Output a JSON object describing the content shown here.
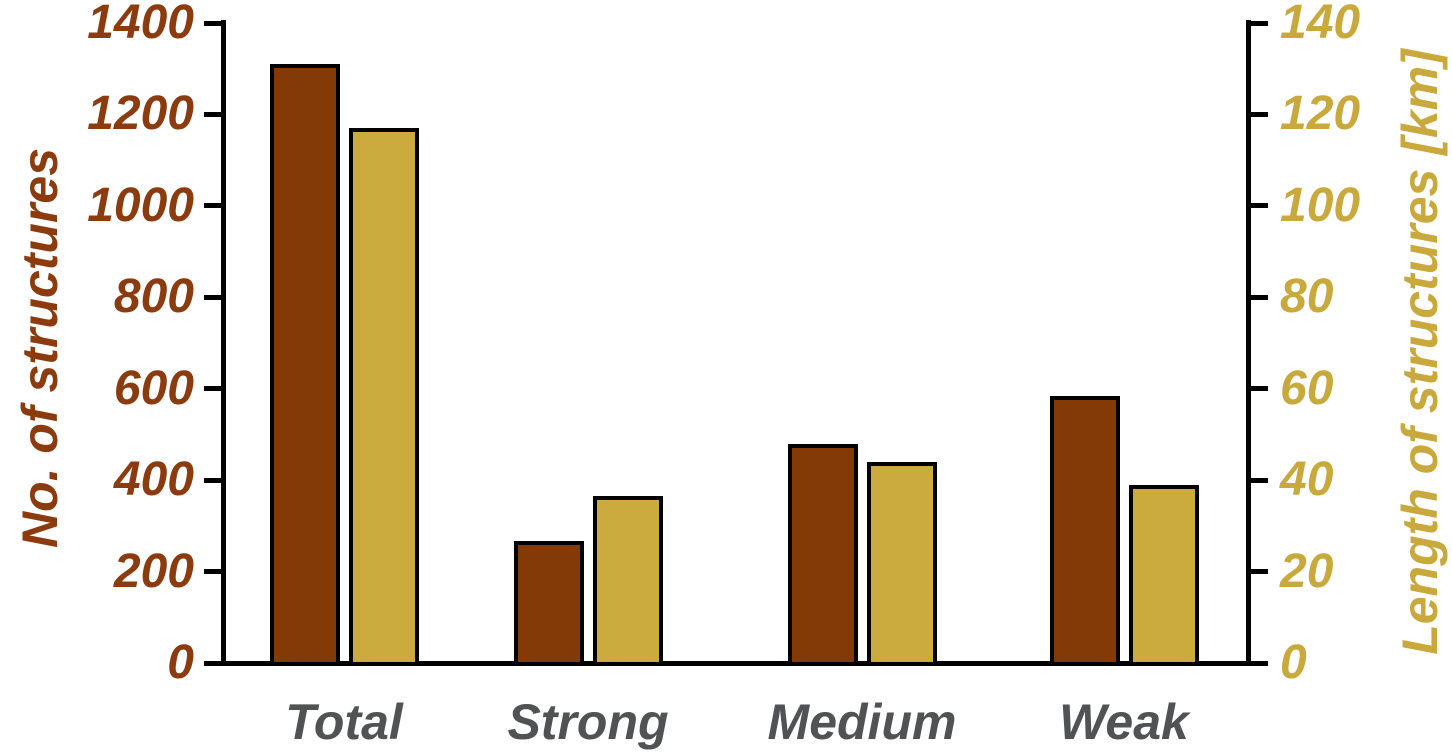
{
  "chart_data": {
    "type": "bar",
    "categories": [
      "Total",
      "Strong",
      "Medium",
      "Weak"
    ],
    "series": [
      {
        "name": "No. of structures",
        "axis": "left",
        "color": "#843A06",
        "border_color": "#000000",
        "values": [
          1310,
          267,
          480,
          585
        ]
      },
      {
        "name": "Length of structures [km]",
        "axis": "right",
        "color": "#CBAA3E",
        "border_color": "#000000",
        "values": [
          117,
          36.5,
          44,
          39
        ]
      }
    ],
    "left_axis": {
      "label": "No. of structures",
      "min": 0,
      "max": 1400,
      "tick_step": 200,
      "tick_labels": [
        "0",
        "200",
        "400",
        "600",
        "800",
        "1000",
        "1200",
        "1400"
      ],
      "text_color": "#8B3B0E"
    },
    "right_axis": {
      "label": "Length of structures [km]",
      "min": 0,
      "max": 140,
      "tick_step": 20,
      "tick_labels": [
        "0",
        "20",
        "40",
        "60",
        "80",
        "100",
        "120",
        "140"
      ],
      "text_color": "#C9A93C"
    },
    "x_axis": {
      "label_color": "#515254"
    },
    "axis_line_color": "#000000",
    "grid": false,
    "legend": "none",
    "title": ""
  }
}
